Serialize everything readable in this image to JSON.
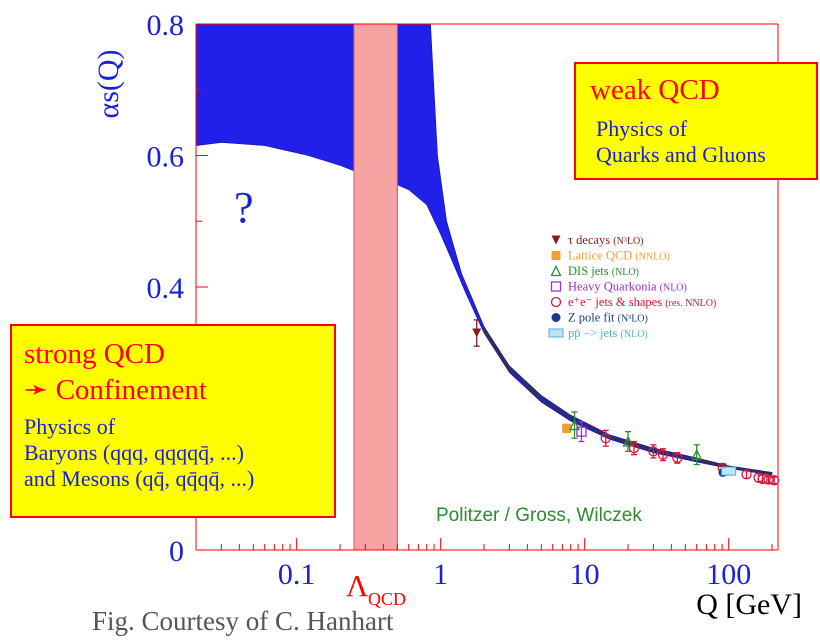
{
  "chart_data": {
    "type": "scatter",
    "x_scale": "log",
    "xlim": [
      0.02,
      220
    ],
    "ylim": [
      0,
      0.8
    ],
    "x_ticks": [
      0.1,
      1,
      10,
      100
    ],
    "x_tick_labels": [
      "0.1",
      "1",
      "10",
      "100"
    ],
    "y_ticks": [
      0,
      0.4,
      0.6,
      0.8
    ],
    "y_tick_labels": [
      "0",
      "0.4",
      "0.6",
      "0.8"
    ],
    "ylabel": "αs(Q)",
    "xlabel": "Q [GeV]",
    "lambda_label": "Λ",
    "lambda_subscript": "QCD",
    "lambda_band": [
      0.25,
      0.5
    ],
    "question_mark": "?",
    "theory_credit": "Politzer / Gross, Wilczek",
    "band_upper": [
      [
        0.02,
        0.8
      ],
      [
        0.85,
        0.8
      ],
      [
        0.95,
        0.6
      ],
      [
        1.1,
        0.5
      ],
      [
        1.4,
        0.42
      ],
      [
        2,
        0.34
      ],
      [
        3,
        0.28
      ],
      [
        5,
        0.235
      ],
      [
        8,
        0.205
      ],
      [
        15,
        0.175
      ],
      [
        30,
        0.155
      ],
      [
        60,
        0.14
      ],
      [
        100,
        0.128
      ],
      [
        200,
        0.118
      ]
    ],
    "band_lower": [
      [
        0.02,
        0.615
      ],
      [
        0.03,
        0.62
      ],
      [
        0.06,
        0.615
      ],
      [
        0.12,
        0.6
      ],
      [
        0.2,
        0.585
      ],
      [
        0.3,
        0.57
      ],
      [
        0.45,
        0.56
      ],
      [
        0.6,
        0.548
      ],
      [
        0.8,
        0.525
      ],
      [
        1,
        0.48
      ],
      [
        1.2,
        0.44
      ],
      [
        1.5,
        0.39
      ],
      [
        2,
        0.33
      ],
      [
        3,
        0.27
      ],
      [
        5,
        0.225
      ],
      [
        8,
        0.196
      ],
      [
        15,
        0.168
      ],
      [
        30,
        0.148
      ],
      [
        60,
        0.134
      ],
      [
        100,
        0.124
      ],
      [
        200,
        0.114
      ]
    ],
    "series": [
      {
        "name": "τ decays",
        "tag": "(N³LO)",
        "color": "#8b1a1a",
        "marker": "triangle-down",
        "points": [
          [
            1.78,
            0.33
          ]
        ],
        "err": [
          0.02
        ]
      },
      {
        "name": "Lattice QCD",
        "tag": "(NNLO)",
        "color": "#f0a030",
        "marker": "square",
        "points": [
          [
            7.5,
            0.185
          ]
        ],
        "err": [
          0.006
        ]
      },
      {
        "name": "DIS jets",
        "tag": "(NLO)",
        "color": "#2e8b2e",
        "marker": "triangle-up",
        "points": [
          [
            8.5,
            0.19
          ],
          [
            20,
            0.165
          ],
          [
            60,
            0.145
          ]
        ],
        "err": [
          0.02,
          0.015,
          0.015
        ]
      },
      {
        "name": "Heavy Quarkonia",
        "tag": "(NLO)",
        "color": "#9932cc",
        "marker": "square-open",
        "points": [
          [
            9.5,
            0.18
          ]
        ],
        "err": [
          0.015
        ]
      },
      {
        "name": "e⁺e⁻ jets & shapes",
        "tag": "(res. NNLO)",
        "color": "#dc143c",
        "marker": "circle-open",
        "points": [
          [
            14,
            0.17
          ],
          [
            22,
            0.155
          ],
          [
            30,
            0.15
          ],
          [
            35,
            0.145
          ],
          [
            44,
            0.14
          ],
          [
            91,
            0.125
          ],
          [
            133,
            0.115
          ],
          [
            161,
            0.11
          ],
          [
            172,
            0.108
          ],
          [
            189,
            0.107
          ],
          [
            207,
            0.106
          ]
        ],
        "err": [
          0.012,
          0.01,
          0.01,
          0.009,
          0.008,
          0.006,
          0.006,
          0.006,
          0.006,
          0.005,
          0.005
        ]
      },
      {
        "name": "Z pole fit",
        "tag": "(N³LO)",
        "color": "#1e3a8a",
        "marker": "circle",
        "points": [
          [
            91.2,
            0.118
          ]
        ],
        "err": [
          0.003
        ]
      },
      {
        "name": "pp̄ –> jets",
        "tag": "(NLO)",
        "color": "#4fb0e0",
        "marker": "hatched",
        "points": [
          [
            100,
            0.12
          ]
        ],
        "err": [
          0.006
        ]
      }
    ]
  },
  "boxes": {
    "weak": {
      "head": "weak QCD",
      "line1": "Physics of",
      "line2": "Quarks and Gluons"
    },
    "strong": {
      "head1": "strong QCD",
      "arrow": "➛",
      "head2": "Confinement",
      "line1": "Physics of",
      "line2": "Baryons (qqq, qqqqq̄, ...)",
      "line3": "and Mesons (qq̄, qq̄qq̄, ...)"
    }
  },
  "caption": "Fig. Courtesy of C. Hanhart"
}
